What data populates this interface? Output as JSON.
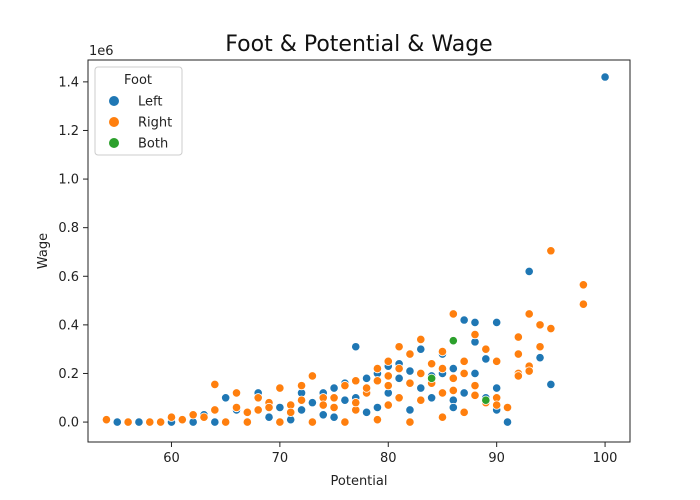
{
  "chart_data": {
    "type": "scatter",
    "title": "Foot & Potential & Wage",
    "xlabel": "Potential",
    "ylabel": "Wage",
    "y_multiplier_label": "1e6",
    "xlim": [
      52.3,
      102.3
    ],
    "ylim": [
      -0.082,
      1.49
    ],
    "xticks": [
      60,
      70,
      80,
      90,
      100
    ],
    "yticks": [
      0.0,
      0.2,
      0.4,
      0.6,
      0.8,
      1.0,
      1.2,
      1.4
    ],
    "xtick_labels": [
      "60",
      "70",
      "80",
      "90",
      "100"
    ],
    "ytick_labels": [
      "0.0",
      "0.2",
      "0.4",
      "0.6",
      "0.8",
      "1.0",
      "1.2",
      "1.4"
    ],
    "grid": false,
    "legend": {
      "title": "Foot",
      "placement": "top-left"
    },
    "series": [
      {
        "name": "Left",
        "color": "#1f77b4",
        "points": [
          [
            100,
            1.42
          ],
          [
            93,
            0.62
          ],
          [
            87,
            0.42
          ],
          [
            88,
            0.41
          ],
          [
            90,
            0.41
          ],
          [
            77,
            0.31
          ],
          [
            94,
            0.265
          ],
          [
            95,
            0.155
          ],
          [
            88,
            0.33
          ],
          [
            89,
            0.26
          ],
          [
            86,
            0.22
          ],
          [
            85,
            0.2
          ],
          [
            84,
            0.19
          ],
          [
            82,
            0.21
          ],
          [
            81,
            0.24
          ],
          [
            80,
            0.23
          ],
          [
            79,
            0.2
          ],
          [
            78,
            0.18
          ],
          [
            76,
            0.16
          ],
          [
            75,
            0.14
          ],
          [
            74,
            0.12
          ],
          [
            72,
            0.12
          ],
          [
            68,
            0.12
          ],
          [
            65,
            0.1
          ],
          [
            55,
            0.0
          ],
          [
            57,
            0.0
          ],
          [
            60,
            0.0
          ],
          [
            62,
            0.0
          ],
          [
            63,
            0.03
          ],
          [
            66,
            0.05
          ],
          [
            70,
            0.06
          ],
          [
            73,
            0.08
          ],
          [
            77,
            0.1
          ],
          [
            80,
            0.12
          ],
          [
            83,
            0.14
          ],
          [
            86,
            0.09
          ],
          [
            87,
            0.12
          ],
          [
            89,
            0.1
          ],
          [
            90,
            0.14
          ],
          [
            90,
            0.05
          ],
          [
            82,
            0.05
          ],
          [
            78,
            0.04
          ],
          [
            74,
            0.03
          ],
          [
            71,
            0.01
          ],
          [
            69,
            0.02
          ],
          [
            67,
            0.0
          ],
          [
            64,
            0.0
          ],
          [
            85,
            0.28
          ],
          [
            83,
            0.3
          ],
          [
            81,
            0.18
          ],
          [
            79,
            0.06
          ],
          [
            76,
            0.09
          ],
          [
            88,
            0.2
          ],
          [
            84,
            0.1
          ],
          [
            86,
            0.06
          ],
          [
            91,
            0.0
          ],
          [
            72,
            0.05
          ],
          [
            75,
            0.02
          ]
        ]
      },
      {
        "name": "Right",
        "color": "#ff7f0e",
        "points": [
          [
            95,
            0.705
          ],
          [
            98,
            0.565
          ],
          [
            98,
            0.485
          ],
          [
            93,
            0.445
          ],
          [
            94,
            0.4
          ],
          [
            95,
            0.385
          ],
          [
            86,
            0.445
          ],
          [
            88,
            0.36
          ],
          [
            92,
            0.35
          ],
          [
            94,
            0.31
          ],
          [
            92,
            0.28
          ],
          [
            89,
            0.3
          ],
          [
            85,
            0.29
          ],
          [
            83,
            0.34
          ],
          [
            81,
            0.31
          ],
          [
            82,
            0.28
          ],
          [
            80,
            0.25
          ],
          [
            79,
            0.22
          ],
          [
            77,
            0.17
          ],
          [
            76,
            0.15
          ],
          [
            73,
            0.19
          ],
          [
            70,
            0.14
          ],
          [
            72,
            0.15
          ],
          [
            64,
            0.155
          ],
          [
            66,
            0.12
          ],
          [
            68,
            0.1
          ],
          [
            69,
            0.08
          ],
          [
            71,
            0.07
          ],
          [
            74,
            0.1
          ],
          [
            75,
            0.06
          ],
          [
            77,
            0.05
          ],
          [
            78,
            0.12
          ],
          [
            80,
            0.15
          ],
          [
            81,
            0.1
          ],
          [
            83,
            0.2
          ],
          [
            84,
            0.16
          ],
          [
            85,
            0.12
          ],
          [
            86,
            0.18
          ],
          [
            87,
            0.25
          ],
          [
            88,
            0.15
          ],
          [
            90,
            0.25
          ],
          [
            90,
            0.1
          ],
          [
            92,
            0.2
          ],
          [
            93,
            0.23
          ],
          [
            91,
            0.06
          ],
          [
            89,
            0.08
          ],
          [
            87,
            0.04
          ],
          [
            85,
            0.02
          ],
          [
            82,
            0.0
          ],
          [
            79,
            0.01
          ],
          [
            76,
            0.0
          ],
          [
            73,
            0.0
          ],
          [
            70,
            0.0
          ],
          [
            67,
            0.0
          ],
          [
            65,
            0.0
          ],
          [
            63,
            0.02
          ],
          [
            61,
            0.01
          ],
          [
            59,
            0.0
          ],
          [
            58,
            0.0
          ],
          [
            56,
            0.0
          ],
          [
            54,
            0.01
          ],
          [
            60,
            0.02
          ],
          [
            62,
            0.03
          ],
          [
            64,
            0.05
          ],
          [
            66,
            0.06
          ],
          [
            68,
            0.05
          ],
          [
            71,
            0.04
          ],
          [
            74,
            0.07
          ],
          [
            77,
            0.08
          ],
          [
            80,
            0.07
          ],
          [
            83,
            0.09
          ],
          [
            86,
            0.13
          ],
          [
            88,
            0.11
          ],
          [
            90,
            0.07
          ],
          [
            92,
            0.19
          ],
          [
            93,
            0.21
          ],
          [
            84,
            0.24
          ],
          [
            82,
            0.16
          ],
          [
            78,
            0.14
          ],
          [
            75,
            0.1
          ],
          [
            72,
            0.09
          ],
          [
            69,
            0.06
          ],
          [
            67,
            0.04
          ],
          [
            80,
            0.19
          ],
          [
            81,
            0.22
          ],
          [
            79,
            0.17
          ],
          [
            85,
            0.22
          ],
          [
            87,
            0.2
          ]
        ]
      },
      {
        "name": "Both",
        "color": "#2ca02c",
        "points": [
          [
            86,
            0.335
          ],
          [
            84,
            0.18
          ],
          [
            89,
            0.09
          ]
        ]
      }
    ]
  }
}
